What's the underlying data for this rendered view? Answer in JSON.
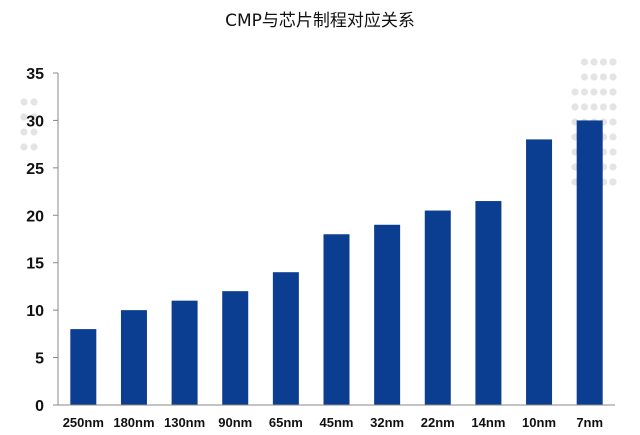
{
  "chart_data": {
    "type": "bar",
    "title": "CMP与芯片制程对应关系",
    "categories": [
      "250nm",
      "180nm",
      "130nm",
      "90nm",
      "65nm",
      "45nm",
      "32nm",
      "22nm",
      "14nm",
      "10nm",
      "7nm"
    ],
    "values": [
      8,
      10,
      11,
      12,
      14,
      18,
      19,
      20.5,
      21.5,
      28,
      30
    ],
    "ylim": [
      0,
      35
    ],
    "yticks": [
      0,
      5,
      10,
      15,
      20,
      25,
      30,
      35
    ],
    "xlabel": "",
    "ylabel": "",
    "grid": false,
    "bar_color": "#0b3d91",
    "decoration_dot_color": "#e4e4e4"
  }
}
